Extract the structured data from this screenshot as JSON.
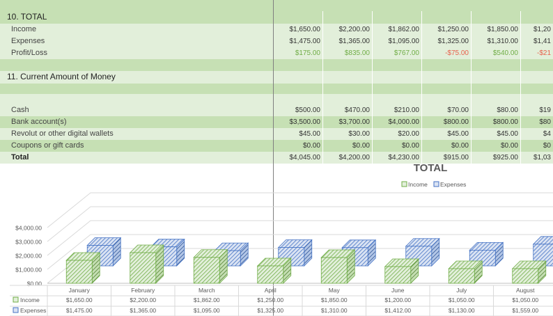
{
  "total_section": {
    "title": "10. TOTAL",
    "rows": [
      {
        "label": "Income",
        "values": [
          "$1,650.00",
          "$2,200.00",
          "$1,862.00",
          "$1,250.00",
          "$1,850.00",
          "$1,20"
        ],
        "kind": "normal"
      },
      {
        "label": "Expenses",
        "values": [
          "$1,475.00",
          "$1,365.00",
          "$1,095.00",
          "$1,325.00",
          "$1,310.00",
          "$1,41"
        ],
        "kind": "normal"
      },
      {
        "label": "Profit/Loss",
        "values": [
          "$175.00",
          "$835.00",
          "$767.00",
          "-$75.00",
          "$540.00",
          "-$21"
        ],
        "kind": "profit"
      }
    ]
  },
  "money_section": {
    "title": "11. Current Amount of Money",
    "rows": [
      {
        "label": "Cash",
        "values": [
          "$500.00",
          "$470.00",
          "$210.00",
          "$70.00",
          "$80.00",
          "$19"
        ]
      },
      {
        "label": "Bank account(s)",
        "values": [
          "$3,500.00",
          "$3,700.00",
          "$4,000.00",
          "$800.00",
          "$800.00",
          "$80"
        ]
      },
      {
        "label": "Revolut or other digital wallets",
        "values": [
          "$45.00",
          "$30.00",
          "$20.00",
          "$45.00",
          "$45.00",
          "$4"
        ]
      },
      {
        "label": "Coupons or gift cards",
        "values": [
          "$0.00",
          "$0.00",
          "$0.00",
          "$0.00",
          "$0.00",
          "$0"
        ]
      },
      {
        "label": "Total",
        "values": [
          "$4,045.00",
          "$4,200.00",
          "$4,230.00",
          "$915.00",
          "$925.00",
          "$1,03"
        ]
      }
    ]
  },
  "colors": {
    "band": "#c6e0b4",
    "light": "#e2efda",
    "income": "#70ad47",
    "expenses": "#4472c4",
    "positive": "#70ad47",
    "negative": "#e8604c"
  },
  "chart_data": {
    "type": "bar",
    "title": "TOTAL",
    "legend_position": "top",
    "categories": [
      "January",
      "February",
      "March",
      "April",
      "May",
      "June",
      "July",
      "August"
    ],
    "series": [
      {
        "name": "Income",
        "values": [
          1650,
          2200,
          1862,
          1250,
          1850,
          1200,
          1050,
          1050
        ],
        "labels": [
          "$1,650.00",
          "$2,200.00",
          "$1,862.00",
          "$1,250.00",
          "$1,850.00",
          "$1,200.00",
          "$1,050.00",
          "$1,050.00"
        ]
      },
      {
        "name": "Expenses",
        "values": [
          1475,
          1365,
          1095,
          1325,
          1310,
          1412,
          1130,
          1559
        ],
        "labels": [
          "$1,475.00",
          "$1,365.00",
          "$1,095.00",
          "$1,325.00",
          "$1,310.00",
          "$1,412.00",
          "$1,130.00",
          "$1,559.00"
        ]
      }
    ],
    "ylim": [
      0,
      4000
    ],
    "y_ticks": [
      "$0.00",
      "$1,000.00",
      "$2,000.00",
      "$3,000.00",
      "$4,000.00"
    ],
    "grid": true,
    "data_table": true
  }
}
